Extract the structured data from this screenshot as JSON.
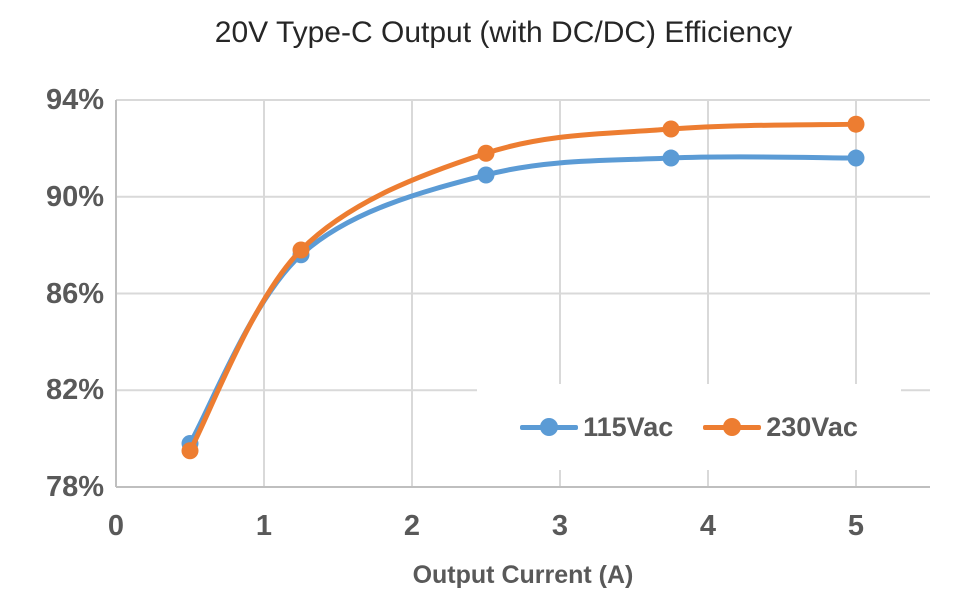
{
  "chart": {
    "title": "20V Type-C Output (with DC/DC) Efficiency",
    "x_axis_title": "Output Current (A)"
  },
  "chart_data": {
    "type": "line",
    "title": "20V Type-C Output (with DC/DC) Efficiency",
    "xlabel": "Output Current (A)",
    "ylabel": "",
    "x": [
      0.5,
      1.25,
      2.5,
      3.75,
      5
    ],
    "series": [
      {
        "name": "115Vac",
        "color": "#5B9BD5",
        "values": [
          79.8,
          87.6,
          90.9,
          91.6,
          91.6
        ]
      },
      {
        "name": "230Vac",
        "color": "#ED7D31",
        "values": [
          79.5,
          87.8,
          91.8,
          92.8,
          93.0
        ]
      }
    ],
    "xlim": [
      0,
      5.5
    ],
    "ylim": [
      78,
      94
    ],
    "xticks": [
      0,
      1,
      2,
      3,
      4,
      5
    ],
    "xtick_labels": [
      "0",
      "1",
      "2",
      "3",
      "4",
      "5"
    ],
    "yticks": [
      94,
      90,
      86,
      82,
      78
    ],
    "ytick_labels": [
      "94%",
      "90%",
      "86%",
      "82%",
      "78%"
    ],
    "grid": true,
    "smooth": true,
    "markers": true,
    "legend_position": "inside-bottom-right",
    "legend_entries": [
      "115Vac",
      "230Vac"
    ],
    "colors": {
      "grid": "#D9D9D9",
      "axis": "#BFBFBF",
      "tick_text": "#595959",
      "title_text": "#262626"
    }
  }
}
